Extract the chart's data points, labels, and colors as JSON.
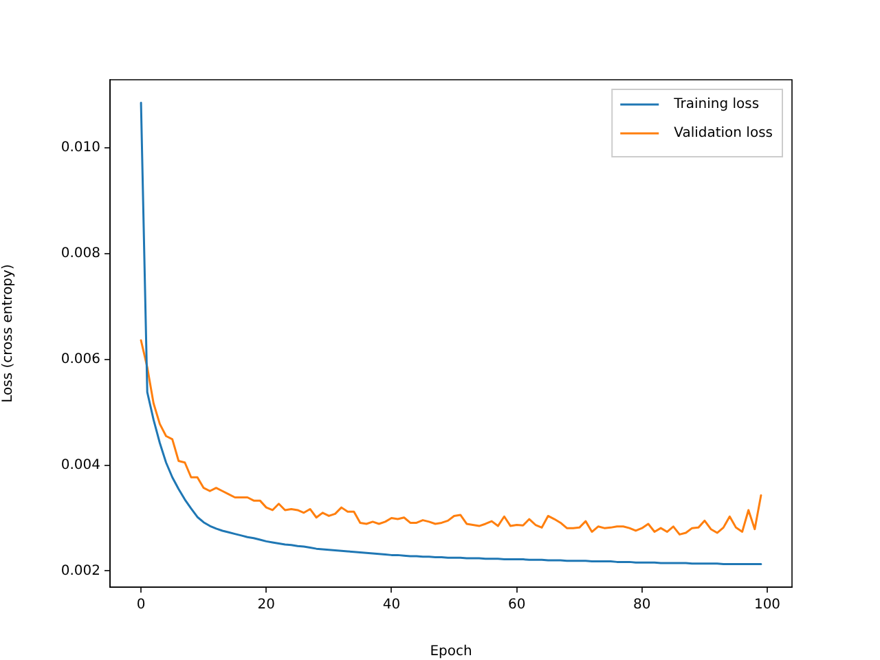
{
  "chart_data": {
    "type": "line",
    "xlabel": "Epoch",
    "ylabel": "Loss (cross entropy)",
    "x": [
      0,
      1,
      2,
      3,
      4,
      5,
      6,
      7,
      8,
      9,
      10,
      11,
      12,
      13,
      14,
      15,
      16,
      17,
      18,
      19,
      20,
      21,
      22,
      23,
      24,
      25,
      26,
      27,
      28,
      29,
      30,
      31,
      32,
      33,
      34,
      35,
      36,
      37,
      38,
      39,
      40,
      41,
      42,
      43,
      44,
      45,
      46,
      47,
      48,
      49,
      50,
      51,
      52,
      53,
      54,
      55,
      56,
      57,
      58,
      59,
      60,
      61,
      62,
      63,
      64,
      65,
      66,
      67,
      68,
      69,
      70,
      71,
      72,
      73,
      74,
      75,
      76,
      77,
      78,
      79,
      80,
      81,
      82,
      83,
      84,
      85,
      86,
      87,
      88,
      89,
      90,
      91,
      92,
      93,
      94,
      95,
      96,
      97,
      98,
      99
    ],
    "series": [
      {
        "name": "Training loss",
        "color": "#1f77b4",
        "values": [
          0.01085,
          0.00538,
          0.00486,
          0.00442,
          0.00405,
          0.00377,
          0.00355,
          0.00335,
          0.00318,
          0.00302,
          0.00292,
          0.00285,
          0.0028,
          0.00276,
          0.00273,
          0.0027,
          0.00267,
          0.00264,
          0.00262,
          0.00259,
          0.00256,
          0.00254,
          0.00252,
          0.0025,
          0.00249,
          0.00247,
          0.00246,
          0.00244,
          0.00242,
          0.00241,
          0.0024,
          0.00239,
          0.00238,
          0.00237,
          0.00236,
          0.00235,
          0.00234,
          0.00233,
          0.00232,
          0.00231,
          0.0023,
          0.0023,
          0.00229,
          0.00228,
          0.00228,
          0.00227,
          0.00227,
          0.00226,
          0.00226,
          0.00225,
          0.00225,
          0.00225,
          0.00224,
          0.00224,
          0.00224,
          0.00223,
          0.00223,
          0.00223,
          0.00222,
          0.00222,
          0.00222,
          0.00222,
          0.00221,
          0.00221,
          0.00221,
          0.0022,
          0.0022,
          0.0022,
          0.00219,
          0.00219,
          0.00219,
          0.00219,
          0.00218,
          0.00218,
          0.00218,
          0.00218,
          0.00217,
          0.00217,
          0.00217,
          0.00216,
          0.00216,
          0.00216,
          0.00216,
          0.00215,
          0.00215,
          0.00215,
          0.00215,
          0.00215,
          0.00214,
          0.00214,
          0.00214,
          0.00214,
          0.00214,
          0.00213,
          0.00213,
          0.00213,
          0.00213,
          0.00213,
          0.00213,
          0.00213
        ]
      },
      {
        "name": "Validation loss",
        "color": "#ff7f0e",
        "values": [
          0.00636,
          0.00585,
          0.00517,
          0.00478,
          0.00455,
          0.00449,
          0.00408,
          0.00405,
          0.00377,
          0.00377,
          0.00357,
          0.00351,
          0.00357,
          0.00351,
          0.00345,
          0.00339,
          0.00339,
          0.00339,
          0.00333,
          0.00333,
          0.0032,
          0.00315,
          0.00327,
          0.00315,
          0.00317,
          0.00315,
          0.0031,
          0.00317,
          0.00301,
          0.0031,
          0.00304,
          0.00308,
          0.0032,
          0.00312,
          0.00312,
          0.00291,
          0.00289,
          0.00293,
          0.00289,
          0.00293,
          0.003,
          0.00298,
          0.00301,
          0.00291,
          0.00291,
          0.00296,
          0.00293,
          0.00289,
          0.00291,
          0.00295,
          0.00304,
          0.00306,
          0.00289,
          0.00287,
          0.00285,
          0.00289,
          0.00294,
          0.00285,
          0.00303,
          0.00285,
          0.00287,
          0.00286,
          0.00298,
          0.00287,
          0.00282,
          0.00304,
          0.00298,
          0.00291,
          0.00281,
          0.00281,
          0.00282,
          0.00294,
          0.00274,
          0.00284,
          0.00281,
          0.00282,
          0.00284,
          0.00284,
          0.00281,
          0.00276,
          0.00281,
          0.00289,
          0.00274,
          0.00281,
          0.00274,
          0.00284,
          0.00269,
          0.00272,
          0.00281,
          0.00282,
          0.00295,
          0.00279,
          0.00272,
          0.00282,
          0.00303,
          0.00282,
          0.00274,
          0.00315,
          0.00279,
          0.00343
        ]
      }
    ],
    "xlim": [
      -4.95,
      103.95
    ],
    "xticks": [
      0,
      20,
      40,
      60,
      80,
      100
    ],
    "ylim": [
      0.001694,
      0.011286
    ],
    "yticks": [
      {
        "value": 0.002,
        "label": "0.002"
      },
      {
        "value": 0.004,
        "label": "0.004"
      },
      {
        "value": 0.006,
        "label": "0.006"
      },
      {
        "value": 0.008,
        "label": "0.008"
      },
      {
        "value": 0.01,
        "label": "0.010"
      }
    ],
    "grid": false,
    "legend": "top right",
    "marker": "none",
    "line_style": "solid"
  }
}
